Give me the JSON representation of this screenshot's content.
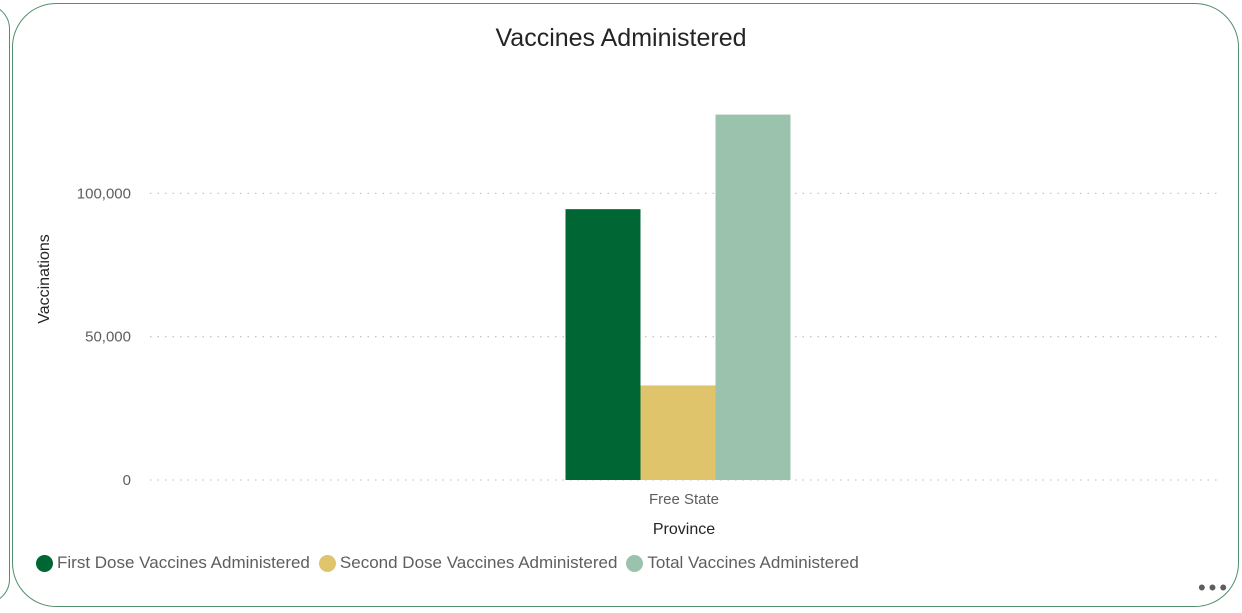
{
  "visual": {
    "title": "Vaccines Administered",
    "more_options_glyph": "•••"
  },
  "colors": {
    "card_border": "#4f8f6a",
    "gridline": "#c8c6c4"
  },
  "chart_data": {
    "type": "bar",
    "title": "Vaccines Administered",
    "xlabel": "Province",
    "ylabel": "Vaccinations",
    "categories": [
      "Free State"
    ],
    "ylim": [
      0,
      125000
    ],
    "yticks": [
      0,
      50000,
      100000
    ],
    "ytick_labels": [
      "0",
      "50,000",
      "100,000"
    ],
    "grid": true,
    "legend_position": "bottom-left",
    "series": [
      {
        "name": "First Dose Vaccines Administered",
        "color": "#006633",
        "values": [
          94500
        ]
      },
      {
        "name": "Second Dose Vaccines Administered",
        "color": "#e0c46c",
        "values": [
          33000
        ]
      },
      {
        "name": "Total Vaccines Administered",
        "color": "#9ac2ad",
        "values": [
          127500
        ]
      }
    ]
  }
}
